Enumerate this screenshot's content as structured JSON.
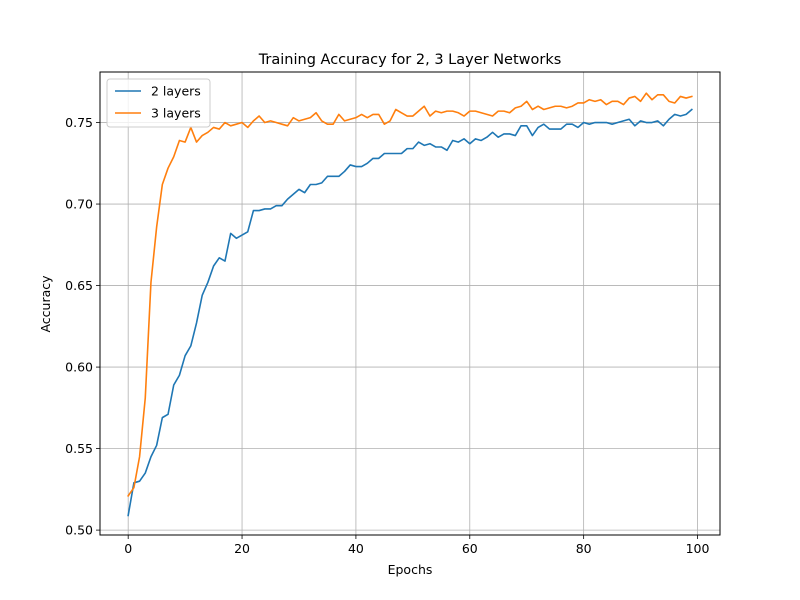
{
  "chart_data": {
    "type": "line",
    "title": "Training Accuracy for 2, 3 Layer Networks",
    "xlabel": "Epochs",
    "ylabel": "Accuracy",
    "xlim": [
      -4.95,
      103.95
    ],
    "ylim": [
      0.497,
      0.781
    ],
    "xticks": [
      0,
      20,
      40,
      60,
      80,
      100
    ],
    "xtick_labels": [
      "0",
      "20",
      "40",
      "60",
      "80",
      "100"
    ],
    "yticks": [
      0.5,
      0.55,
      0.6,
      0.65,
      0.7,
      0.75
    ],
    "ytick_labels": [
      "0.50",
      "0.55",
      "0.60",
      "0.65",
      "0.70",
      "0.75"
    ],
    "grid": true,
    "legend_position": "top-left",
    "x": [
      0,
      1,
      2,
      3,
      4,
      5,
      6,
      7,
      8,
      9,
      10,
      11,
      12,
      13,
      14,
      15,
      16,
      17,
      18,
      19,
      20,
      21,
      22,
      23,
      24,
      25,
      26,
      27,
      28,
      29,
      30,
      31,
      32,
      33,
      34,
      35,
      36,
      37,
      38,
      39,
      40,
      41,
      42,
      43,
      44,
      45,
      46,
      47,
      48,
      49,
      50,
      51,
      52,
      53,
      54,
      55,
      56,
      57,
      58,
      59,
      60,
      61,
      62,
      63,
      64,
      65,
      66,
      67,
      68,
      69,
      70,
      71,
      72,
      73,
      74,
      75,
      76,
      77,
      78,
      79,
      80,
      81,
      82,
      83,
      84,
      85,
      86,
      87,
      88,
      89,
      90,
      91,
      92,
      93,
      94,
      95,
      96,
      97,
      98,
      99
    ],
    "series": [
      {
        "name": "2 layers",
        "color": "#1f77b4",
        "values": [
          0.509,
          0.529,
          0.53,
          0.535,
          0.545,
          0.552,
          0.569,
          0.571,
          0.589,
          0.595,
          0.607,
          0.613,
          0.627,
          0.644,
          0.652,
          0.662,
          0.667,
          0.665,
          0.682,
          0.679,
          0.681,
          0.683,
          0.696,
          0.696,
          0.697,
          0.697,
          0.699,
          0.699,
          0.703,
          0.706,
          0.709,
          0.707,
          0.712,
          0.712,
          0.713,
          0.717,
          0.717,
          0.717,
          0.72,
          0.724,
          0.723,
          0.723,
          0.725,
          0.728,
          0.728,
          0.731,
          0.731,
          0.731,
          0.731,
          0.734,
          0.734,
          0.738,
          0.736,
          0.737,
          0.735,
          0.735,
          0.733,
          0.739,
          0.738,
          0.74,
          0.737,
          0.74,
          0.739,
          0.741,
          0.744,
          0.741,
          0.743,
          0.743,
          0.742,
          0.748,
          0.748,
          0.742,
          0.747,
          0.749,
          0.746,
          0.746,
          0.746,
          0.749,
          0.749,
          0.747,
          0.75,
          0.749,
          0.75,
          0.75,
          0.75,
          0.749,
          0.75,
          0.751,
          0.752,
          0.748,
          0.751,
          0.75,
          0.75,
          0.751,
          0.748,
          0.752,
          0.755,
          0.754,
          0.755,
          0.758
        ]
      },
      {
        "name": "3 layers",
        "color": "#ff7f0e",
        "values": [
          0.521,
          0.526,
          0.545,
          0.581,
          0.652,
          0.686,
          0.712,
          0.722,
          0.729,
          0.739,
          0.738,
          0.747,
          0.738,
          0.742,
          0.744,
          0.747,
          0.746,
          0.75,
          0.748,
          0.749,
          0.75,
          0.747,
          0.751,
          0.754,
          0.75,
          0.751,
          0.75,
          0.749,
          0.748,
          0.753,
          0.751,
          0.752,
          0.753,
          0.756,
          0.751,
          0.749,
          0.749,
          0.755,
          0.751,
          0.752,
          0.753,
          0.755,
          0.753,
          0.755,
          0.755,
          0.749,
          0.751,
          0.758,
          0.756,
          0.754,
          0.754,
          0.757,
          0.76,
          0.754,
          0.757,
          0.756,
          0.757,
          0.757,
          0.756,
          0.754,
          0.757,
          0.757,
          0.756,
          0.755,
          0.754,
          0.757,
          0.757,
          0.756,
          0.759,
          0.76,
          0.763,
          0.758,
          0.76,
          0.758,
          0.759,
          0.76,
          0.76,
          0.759,
          0.76,
          0.762,
          0.762,
          0.764,
          0.763,
          0.764,
          0.761,
          0.763,
          0.763,
          0.761,
          0.765,
          0.766,
          0.763,
          0.768,
          0.764,
          0.767,
          0.767,
          0.763,
          0.762,
          0.766,
          0.765,
          0.766
        ]
      }
    ]
  }
}
